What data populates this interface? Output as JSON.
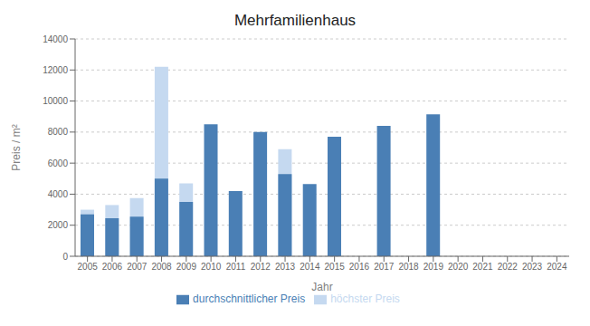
{
  "chart_data": {
    "type": "bar",
    "title": "Mehrfamilienhaus",
    "xlabel": "Jahr",
    "ylabel": "Preis / m²",
    "categories": [
      "2005",
      "2006",
      "2007",
      "2008",
      "2009",
      "2010",
      "2011",
      "2012",
      "2013",
      "2014",
      "2015",
      "2016",
      "2017",
      "2018",
      "2019",
      "2020",
      "2021",
      "2022",
      "2023",
      "2024"
    ],
    "series": [
      {
        "name": "höchster Preis",
        "color": "#c5d9f0",
        "values": [
          3000,
          3300,
          3750,
          12200,
          4700,
          0,
          0,
          0,
          6900,
          0,
          0,
          0,
          0,
          0,
          0,
          0,
          0,
          0,
          0,
          0
        ]
      },
      {
        "name": "durchschnittlicher Preis",
        "color": "#4a7fb5",
        "values": [
          2700,
          2450,
          2550,
          5000,
          3500,
          8500,
          4200,
          8000,
          5300,
          4650,
          7700,
          0,
          8400,
          0,
          9150,
          0,
          0,
          0,
          0,
          0
        ]
      }
    ],
    "ylim": [
      0,
      14000
    ],
    "yticks": [
      0,
      2000,
      4000,
      6000,
      8000,
      10000,
      12000,
      14000
    ],
    "grid": true,
    "legend": "bottom"
  }
}
